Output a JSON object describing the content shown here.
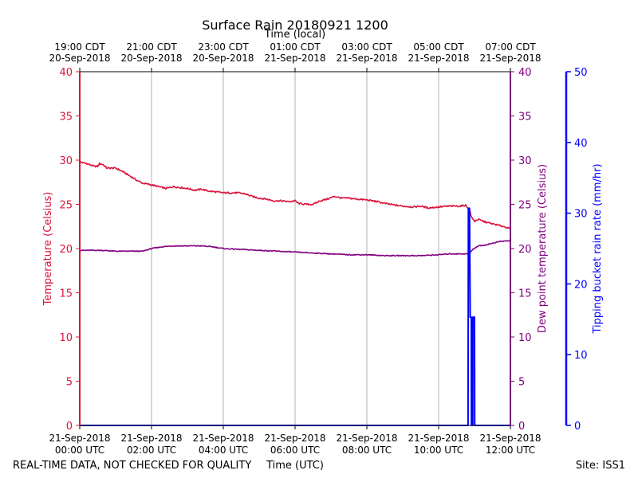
{
  "chart_data": {
    "type": "line",
    "title": "Surface Rain 20180921 1200",
    "top_axis_label": "Time (local)",
    "xlabel": "Time (UTC)",
    "ylabel_left": "Temperature (Celsius)",
    "ylabel_right": "Dew point temperature (Celsius)",
    "ylabel_far_right": "Tipping bucket rain rate (mm/hr)",
    "footer_left": "REAL-TIME DATA, NOT CHECKED FOR QUALITY",
    "footer_right": "Site: ISS1",
    "xlim_hours": [
      0,
      12
    ],
    "ylim_temp": [
      0,
      40
    ],
    "ylim_rain": [
      0,
      50
    ],
    "grid": "vertical",
    "colors": {
      "temperature": "#dc143c",
      "dewpoint": "#800080",
      "rain": "#0000ff",
      "grid": "#b0b0b0",
      "frame": "#000000"
    },
    "bottom_ticks": [
      {
        "hour": 0,
        "line1": "21-Sep-2018",
        "line2": "00:00 UTC"
      },
      {
        "hour": 2,
        "line1": "21-Sep-2018",
        "line2": "02:00 UTC"
      },
      {
        "hour": 4,
        "line1": "21-Sep-2018",
        "line2": "04:00 UTC"
      },
      {
        "hour": 6,
        "line1": "21-Sep-2018",
        "line2": "06:00 UTC"
      },
      {
        "hour": 8,
        "line1": "21-Sep-2018",
        "line2": "08:00 UTC"
      },
      {
        "hour": 10,
        "line1": "21-Sep-2018",
        "line2": "10:00 UTC"
      },
      {
        "hour": 12,
        "line1": "21-Sep-2018",
        "line2": "12:00 UTC"
      }
    ],
    "top_ticks": [
      {
        "hour": 0,
        "line1": "19:00 CDT",
        "line2": "20-Sep-2018"
      },
      {
        "hour": 2,
        "line1": "21:00 CDT",
        "line2": "20-Sep-2018"
      },
      {
        "hour": 4,
        "line1": "23:00 CDT",
        "line2": "20-Sep-2018"
      },
      {
        "hour": 6,
        "line1": "01:00 CDT",
        "line2": "21-Sep-2018"
      },
      {
        "hour": 8,
        "line1": "03:00 CDT",
        "line2": "21-Sep-2018"
      },
      {
        "hour": 10,
        "line1": "05:00 CDT",
        "line2": "21-Sep-2018"
      },
      {
        "hour": 12,
        "line1": "07:00 CDT",
        "line2": "21-Sep-2018"
      }
    ],
    "temp_ticks": [
      0,
      5,
      10,
      15,
      20,
      25,
      30,
      35,
      40
    ],
    "rain_ticks": [
      0,
      10,
      20,
      30,
      40,
      50
    ],
    "series": [
      {
        "name": "Temperature",
        "axis": "temp",
        "color": "#dc143c",
        "points": [
          [
            0,
            29.8
          ],
          [
            0.2,
            29.6
          ],
          [
            0.4,
            29.3
          ],
          [
            0.5,
            29.3
          ],
          [
            0.55,
            29.6
          ],
          [
            0.65,
            29.5
          ],
          [
            0.75,
            29.1
          ],
          [
            1.0,
            29.1
          ],
          [
            1.2,
            28.7
          ],
          [
            1.4,
            28.2
          ],
          [
            1.6,
            27.7
          ],
          [
            1.75,
            27.4
          ],
          [
            2.0,
            27.2
          ],
          [
            2.2,
            27.0
          ],
          [
            2.4,
            26.8
          ],
          [
            2.6,
            27.0
          ],
          [
            2.8,
            26.9
          ],
          [
            3.0,
            26.8
          ],
          [
            3.2,
            26.6
          ],
          [
            3.4,
            26.7
          ],
          [
            3.6,
            26.5
          ],
          [
            3.8,
            26.4
          ],
          [
            4.0,
            26.3
          ],
          [
            4.2,
            26.3
          ],
          [
            4.4,
            26.3
          ],
          [
            4.6,
            26.2
          ],
          [
            4.8,
            25.9
          ],
          [
            5.0,
            25.7
          ],
          [
            5.2,
            25.6
          ],
          [
            5.4,
            25.4
          ],
          [
            5.6,
            25.4
          ],
          [
            5.8,
            25.3
          ],
          [
            6.0,
            25.4
          ],
          [
            6.1,
            25.1
          ],
          [
            6.3,
            25.0
          ],
          [
            6.5,
            25.0
          ],
          [
            6.7,
            25.4
          ],
          [
            6.9,
            25.6
          ],
          [
            7.1,
            25.9
          ],
          [
            7.3,
            25.7
          ],
          [
            7.5,
            25.7
          ],
          [
            7.7,
            25.6
          ],
          [
            8.0,
            25.5
          ],
          [
            8.3,
            25.3
          ],
          [
            8.5,
            25.1
          ],
          [
            8.8,
            24.9
          ],
          [
            9.0,
            24.8
          ],
          [
            9.3,
            24.7
          ],
          [
            9.5,
            24.8
          ],
          [
            9.7,
            24.6
          ],
          [
            10.0,
            24.7
          ],
          [
            10.3,
            24.8
          ],
          [
            10.6,
            24.8
          ],
          [
            10.75,
            24.9
          ],
          [
            10.82,
            24.6
          ],
          [
            10.87,
            24.3
          ],
          [
            10.92,
            23.5
          ],
          [
            11.0,
            23.1
          ],
          [
            11.1,
            23.3
          ],
          [
            11.3,
            23.0
          ],
          [
            11.5,
            22.8
          ],
          [
            11.7,
            22.6
          ],
          [
            11.9,
            22.4
          ],
          [
            12.0,
            22.2
          ]
        ]
      },
      {
        "name": "Dew point",
        "axis": "temp",
        "color": "#800080",
        "points": [
          [
            0,
            19.8
          ],
          [
            0.3,
            19.8
          ],
          [
            0.6,
            19.8
          ],
          [
            1.0,
            19.7
          ],
          [
            1.5,
            19.7
          ],
          [
            1.75,
            19.7
          ],
          [
            2.0,
            20.0
          ],
          [
            2.3,
            20.2
          ],
          [
            2.6,
            20.3
          ],
          [
            3.0,
            20.3
          ],
          [
            3.4,
            20.3
          ],
          [
            3.7,
            20.2
          ],
          [
            4.0,
            20.0
          ],
          [
            4.5,
            19.9
          ],
          [
            5.0,
            19.8
          ],
          [
            5.5,
            19.7
          ],
          [
            6.0,
            19.6
          ],
          [
            6.5,
            19.5
          ],
          [
            7.0,
            19.4
          ],
          [
            7.5,
            19.3
          ],
          [
            8.0,
            19.3
          ],
          [
            8.5,
            19.2
          ],
          [
            9.0,
            19.2
          ],
          [
            9.5,
            19.2
          ],
          [
            10.0,
            19.3
          ],
          [
            10.3,
            19.4
          ],
          [
            10.6,
            19.4
          ],
          [
            10.85,
            19.4
          ],
          [
            10.95,
            19.9
          ],
          [
            11.1,
            20.3
          ],
          [
            11.3,
            20.4
          ],
          [
            11.5,
            20.6
          ],
          [
            11.7,
            20.8
          ],
          [
            12.0,
            20.9
          ]
        ]
      },
      {
        "name": "Rain rate",
        "axis": "rain",
        "color": "#0000ff",
        "points": [
          [
            0,
            0
          ],
          [
            10.82,
            0
          ],
          [
            10.83,
            30.7
          ],
          [
            10.86,
            30.7
          ],
          [
            10.88,
            15.3
          ],
          [
            10.91,
            15.3
          ],
          [
            10.915,
            0
          ],
          [
            10.95,
            0
          ],
          [
            10.955,
            15.3
          ],
          [
            11.0,
            15.3
          ],
          [
            11.005,
            0
          ],
          [
            12.0,
            0
          ]
        ]
      }
    ]
  }
}
